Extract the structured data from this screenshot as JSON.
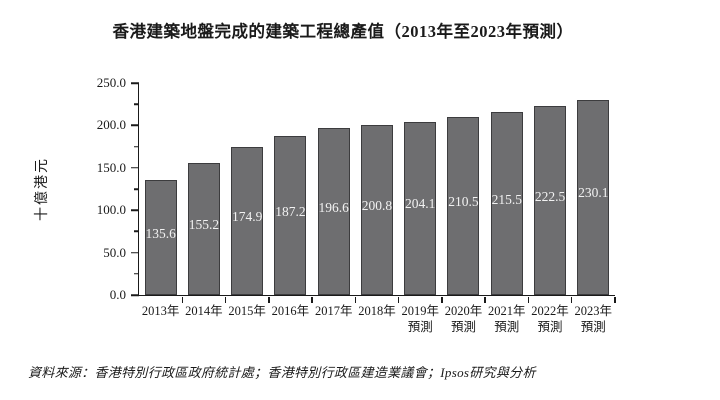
{
  "page": {
    "title": "香港建築地盤完成的建築工程總產值（2013年至2023年預測）",
    "source": "資料來源：香港特別行政區政府統計處；香港特別行政區建造業議會；Ipsos研究與分析"
  },
  "chart_data": {
    "type": "bar",
    "title": "香港建築地盤完成的建築工程總產值（2013年至2023年預測）",
    "xlabel": "",
    "ylabel": "十億港元",
    "ylim": [
      0,
      250
    ],
    "ytick_values": [
      250,
      200,
      150,
      100,
      50,
      0
    ],
    "ytick_decimals": 1,
    "minor_tick_values": [
      225,
      175,
      125,
      75,
      25
    ],
    "categories": [
      "2013年",
      "2014年",
      "2015年",
      "2016年",
      "2017年",
      "2018年",
      "2019年\n預測",
      "2020年\n預測",
      "2021年\n預測",
      "2022年\n預測",
      "2023年\n預測"
    ],
    "values": [
      135.6,
      155.2,
      174.9,
      187.2,
      196.6,
      200.8,
      204.1,
      210.5,
      215.5,
      222.5,
      230.1
    ],
    "value_label_decimals": 1,
    "grid": false,
    "legend": "none",
    "colors": {
      "bar_fill": "#6E6E70",
      "bar_border": "#3C3C3E",
      "value_label": "#F2F2F2",
      "axis": "#1A1A1A"
    }
  }
}
